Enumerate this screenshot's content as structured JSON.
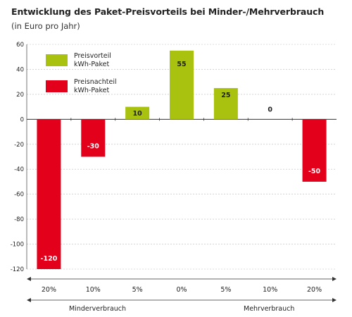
{
  "colors": {
    "positive": "#a8c20f",
    "negative": "#e2001a"
  },
  "chart_data": {
    "type": "bar",
    "title": "Entwicklung des Paket-Preisvorteils bei Minder-/Mehrverbrauch",
    "subtitle": "(in Euro pro Jahr)",
    "categories": [
      "20%",
      "10%",
      "5%",
      "0%",
      "5%",
      "10%",
      "20%"
    ],
    "values": [
      -120,
      -30,
      10,
      55,
      25,
      0,
      -50
    ],
    "value_labels": [
      "-120",
      "-30",
      "10",
      "55",
      "25",
      "0",
      "-50"
    ],
    "yticks": [
      "60",
      "40",
      "20",
      "0",
      "-20",
      "-40",
      "-60",
      "-80",
      "-100",
      "-120"
    ],
    "ylim": [
      -120,
      60
    ],
    "legend": [
      {
        "line1": "Preisvorteil",
        "line2": "kWh-Paket",
        "color": "#a8c20f"
      },
      {
        "line1": "Preisnachteil",
        "line2": "kWh-Paket",
        "color": "#e2001a"
      }
    ],
    "legend_position": "top-left",
    "groups": {
      "left": "Minderverbrauch",
      "right": "Mehrverbrauch"
    }
  }
}
